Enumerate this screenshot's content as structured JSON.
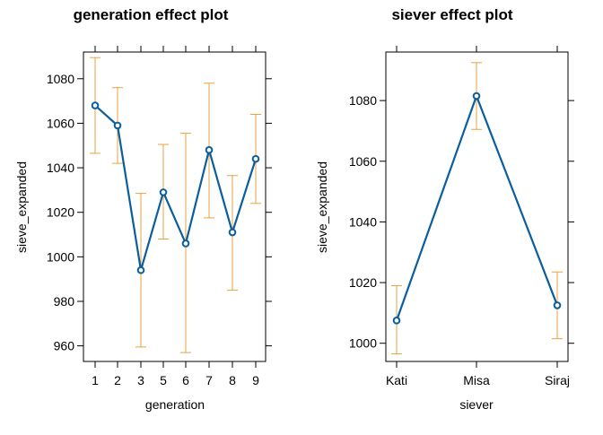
{
  "colors": {
    "line": "#0B5E9E",
    "error_bar": "#E8A33D",
    "axis": "#000000"
  },
  "chart_data": [
    {
      "type": "line",
      "title": "generation effect plot",
      "xlabel": "generation",
      "ylabel": "sieve_expanded",
      "categories": [
        "1",
        "2",
        "3",
        "5",
        "6",
        "7",
        "8",
        "9"
      ],
      "values": [
        1068,
        1059,
        994,
        1029,
        1006,
        1048,
        1011,
        1044
      ],
      "lower": [
        1046.5,
        1042,
        959.5,
        1008,
        957,
        1017.5,
        985,
        1024
      ],
      "upper": [
        1089.5,
        1076,
        1028.5,
        1050.5,
        1055.5,
        1078,
        1036.5,
        1064
      ],
      "yticks": [
        "960",
        "980",
        "1000",
        "1020",
        "1040",
        "1060",
        "1080"
      ],
      "ylim": [
        953,
        1092
      ],
      "grid": false
    },
    {
      "type": "line",
      "title": "siever effect plot",
      "xlabel": "siever",
      "ylabel": "sieve_expanded",
      "categories": [
        "Kati",
        "Misa",
        "Siraj"
      ],
      "values": [
        1007.5,
        1081.5,
        1012.5
      ],
      "lower": [
        996.5,
        1070.5,
        1001.5
      ],
      "upper": [
        1019,
        1092.5,
        1023.5
      ],
      "yticks": [
        "1000",
        "1020",
        "1040",
        "1060",
        "1080"
      ],
      "ylim": [
        994,
        1096
      ],
      "grid": false
    }
  ]
}
